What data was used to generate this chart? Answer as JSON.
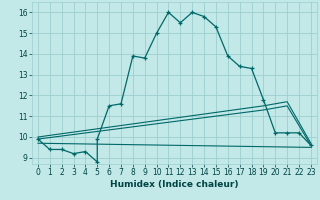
{
  "xlabel": "Humidex (Indice chaleur)",
  "background_color": "#c2e8e8",
  "grid_color": "#9ecece",
  "line_color": "#006868",
  "xlim": [
    -0.5,
    23.5
  ],
  "ylim": [
    8.7,
    16.5
  ],
  "xtick_step": 1,
  "ytick_step": 1,
  "line1_x": [
    0,
    1,
    2,
    3,
    4,
    5,
    5,
    6,
    7,
    8,
    9,
    10,
    11,
    12,
    13,
    14,
    15,
    16,
    17,
    18,
    19,
    20,
    21,
    22,
    23
  ],
  "line1_y": [
    9.9,
    9.4,
    9.4,
    9.2,
    9.3,
    8.8,
    9.9,
    11.5,
    11.6,
    13.9,
    13.8,
    15.0,
    16.0,
    15.5,
    16.0,
    15.8,
    15.3,
    13.9,
    13.4,
    13.3,
    11.8,
    10.2,
    10.2,
    10.2,
    9.6
  ],
  "line2_x": [
    0,
    23
  ],
  "line2_y": [
    9.7,
    9.5
  ],
  "line3_x": [
    0,
    19,
    20,
    21,
    23
  ],
  "line3_y": [
    9.9,
    11.3,
    11.4,
    11.5,
    9.6
  ],
  "line4_x": [
    0,
    19,
    20,
    21,
    23
  ],
  "line4_y": [
    10.0,
    11.5,
    11.6,
    11.7,
    9.7
  ]
}
